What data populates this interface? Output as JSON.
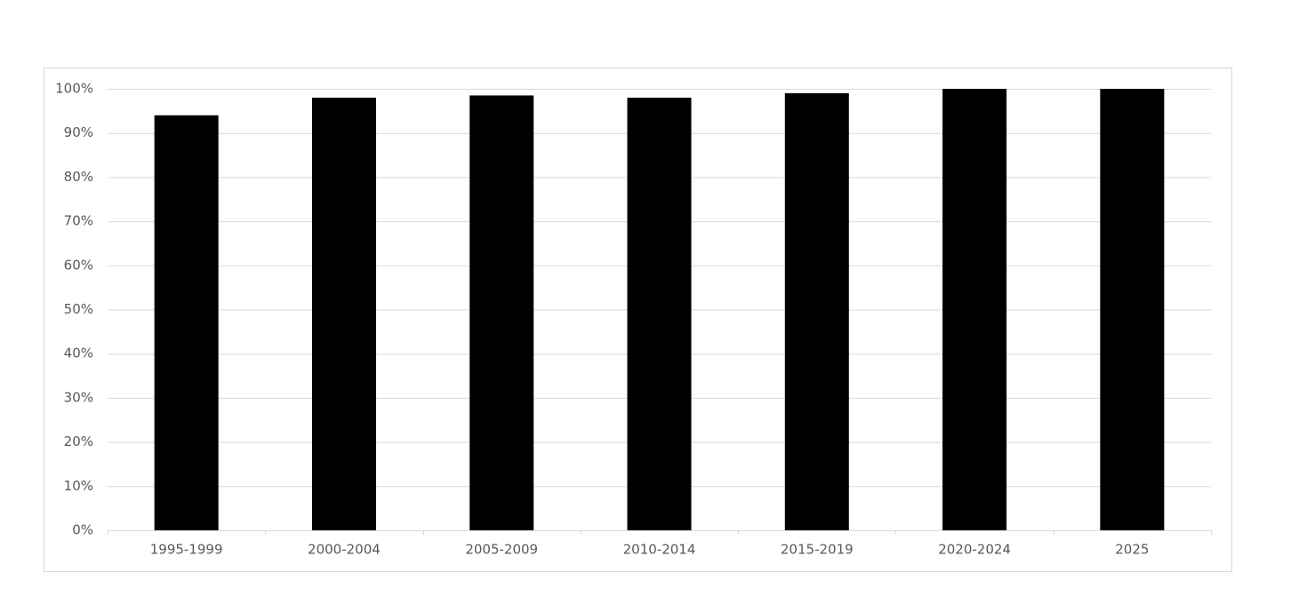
{
  "chart_data": {
    "type": "bar",
    "categories": [
      "1995-1999",
      "2000-2004",
      "2005-2009",
      "2010-2014",
      "2015-2019",
      "2020-2024",
      "2025"
    ],
    "values": [
      94,
      98,
      98.5,
      98,
      99,
      100,
      100
    ],
    "color": "#000000",
    "ylim": [
      0,
      100
    ],
    "yticks": [
      {
        "value": 0,
        "label": "0%"
      },
      {
        "value": 10,
        "label": "10%"
      },
      {
        "value": 20,
        "label": "20%"
      },
      {
        "value": 30,
        "label": "30%"
      },
      {
        "value": 40,
        "label": "40%"
      },
      {
        "value": 50,
        "label": "50%"
      },
      {
        "value": 60,
        "label": "60%"
      },
      {
        "value": 70,
        "label": "70%"
      },
      {
        "value": 80,
        "label": "80%"
      },
      {
        "value": 90,
        "label": "90%"
      },
      {
        "value": 100,
        "label": "100%"
      }
    ],
    "grid": true
  }
}
